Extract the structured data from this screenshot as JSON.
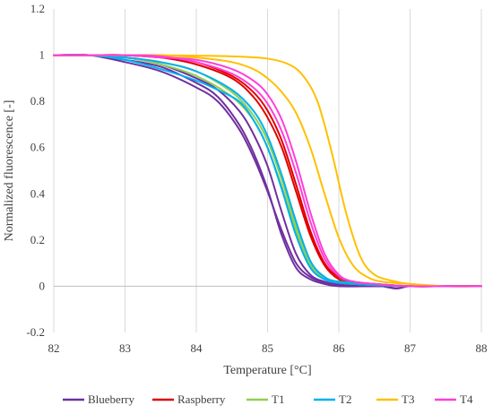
{
  "chart_data": {
    "type": "line",
    "title": "",
    "xlabel": "Temperature [°C]",
    "ylabel": "Normalized fluorescence [-]",
    "xlim": [
      82,
      88
    ],
    "ylim": [
      -0.2,
      1.2
    ],
    "xticks": [
      "82",
      "83",
      "84",
      "85",
      "86",
      "87",
      "88"
    ],
    "yticks": [
      "-0.2",
      "0",
      "0.2",
      "0.4",
      "0.6",
      "0.8",
      "1",
      "1.2"
    ],
    "grid": "vertical",
    "legend_position": "bottom",
    "series": [
      {
        "name": "Blueberry",
        "color": "#7030a0",
        "curves": [
          {
            "x": [
              82,
              82.5,
              83,
              83.5,
              84,
              84.3,
              84.6,
              84.8,
              85,
              85.2,
              85.4,
              85.6,
              85.8,
              86,
              86.5,
              87,
              87.5,
              88
            ],
            "y": [
              1.0,
              1.0,
              0.98,
              0.95,
              0.88,
              0.82,
              0.7,
              0.58,
              0.42,
              0.22,
              0.08,
              0.03,
              0.01,
              0.0,
              0.0,
              0.0,
              0.0,
              0.0
            ]
          },
          {
            "x": [
              82,
              82.5,
              83,
              83.5,
              84,
              84.3,
              84.6,
              84.8,
              85,
              85.2,
              85.4,
              85.6,
              85.8,
              86,
              86.5,
              86.8,
              87,
              87.5,
              88
            ],
            "y": [
              1.0,
              1.0,
              0.99,
              0.96,
              0.9,
              0.85,
              0.76,
              0.66,
              0.52,
              0.32,
              0.14,
              0.05,
              0.02,
              0.01,
              0.005,
              -0.01,
              0.0,
              0.0,
              0.0
            ]
          },
          {
            "x": [
              82,
              82.5,
              83,
              83.5,
              84,
              84.3,
              84.6,
              84.8,
              85,
              85.2,
              85.4,
              85.6,
              85.8,
              86,
              86.5,
              87,
              87.5,
              88
            ],
            "y": [
              1.0,
              1.0,
              0.97,
              0.93,
              0.86,
              0.8,
              0.68,
              0.56,
              0.41,
              0.24,
              0.1,
              0.04,
              0.015,
              0.005,
              0.0,
              0.0,
              0.0,
              0.0
            ]
          }
        ]
      },
      {
        "name": "Raspberry",
        "color": "#e00000",
        "curves": [
          {
            "x": [
              82,
              82.5,
              83,
              83.5,
              84,
              84.5,
              84.8,
              85,
              85.2,
              85.4,
              85.6,
              85.8,
              86,
              86.2,
              86.5,
              87,
              87.5,
              88
            ],
            "y": [
              1.0,
              1.0,
              1.0,
              0.99,
              0.97,
              0.91,
              0.84,
              0.76,
              0.63,
              0.44,
              0.24,
              0.1,
              0.04,
              0.02,
              0.01,
              0.0,
              0.0,
              0.0
            ]
          },
          {
            "x": [
              82,
              82.5,
              83,
              83.5,
              84,
              84.5,
              84.8,
              85,
              85.2,
              85.4,
              85.6,
              85.8,
              86,
              86.2,
              86.5,
              87,
              87.5,
              88
            ],
            "y": [
              1.0,
              1.0,
              1.0,
              0.99,
              0.96,
              0.9,
              0.82,
              0.73,
              0.6,
              0.41,
              0.22,
              0.09,
              0.03,
              0.015,
              0.01,
              0.0,
              0.0,
              0.0
            ]
          }
        ]
      },
      {
        "name": "T1",
        "color": "#92d050",
        "curves": [
          {
            "x": [
              82,
              82.5,
              83,
              83.5,
              84,
              84.5,
              84.8,
              85,
              85.2,
              85.4,
              85.6,
              85.8,
              86,
              86.5,
              87,
              87.5,
              88
            ],
            "y": [
              1.0,
              1.0,
              0.99,
              0.97,
              0.93,
              0.84,
              0.74,
              0.63,
              0.46,
              0.26,
              0.1,
              0.04,
              0.02,
              0.01,
              0.0,
              0.0,
              0.0
            ]
          },
          {
            "x": [
              82,
              82.5,
              83,
              83.5,
              84,
              84.5,
              84.8,
              85,
              85.2,
              85.4,
              85.6,
              85.8,
              86,
              86.5,
              87,
              87.5,
              88
            ],
            "y": [
              1.0,
              1.0,
              0.99,
              0.96,
              0.91,
              0.82,
              0.72,
              0.6,
              0.43,
              0.24,
              0.09,
              0.035,
              0.015,
              0.005,
              0.0,
              0.0,
              0.0
            ]
          }
        ]
      },
      {
        "name": "T2",
        "color": "#00b0f0",
        "curves": [
          {
            "x": [
              82,
              82.5,
              83,
              83.5,
              84,
              84.3,
              84.6,
              84.8,
              85,
              85.2,
              85.4,
              85.6,
              85.8,
              86,
              86.5,
              87,
              87.5,
              88
            ],
            "y": [
              1.0,
              1.0,
              0.98,
              0.94,
              0.89,
              0.85,
              0.8,
              0.72,
              0.6,
              0.42,
              0.22,
              0.08,
              0.03,
              0.015,
              0.005,
              0.0,
              0.0,
              0.0
            ]
          },
          {
            "x": [
              82,
              82.5,
              83,
              83.5,
              84,
              84.5,
              84.8,
              85,
              85.2,
              85.4,
              85.6,
              85.8,
              86,
              86.5,
              87,
              87.5,
              88
            ],
            "y": [
              1.0,
              1.0,
              0.99,
              0.97,
              0.93,
              0.85,
              0.76,
              0.65,
              0.48,
              0.28,
              0.11,
              0.04,
              0.02,
              0.01,
              0.0,
              0.0,
              0.0
            ]
          }
        ]
      },
      {
        "name": "T3",
        "color": "#ffc000",
        "curves": [
          {
            "x": [
              82,
              82.5,
              83,
              83.5,
              84,
              84.5,
              85,
              85.3,
              85.5,
              85.7,
              85.9,
              86.1,
              86.3,
              86.5,
              86.8,
              87,
              87.5,
              88
            ],
            "y": [
              1.0,
              1.0,
              1.0,
              1.0,
              0.998,
              0.995,
              0.985,
              0.96,
              0.91,
              0.8,
              0.58,
              0.32,
              0.13,
              0.05,
              0.02,
              0.01,
              0.0,
              0.0
            ]
          },
          {
            "x": [
              82,
              82.5,
              83,
              83.5,
              84,
              84.5,
              84.8,
              85,
              85.2,
              85.4,
              85.6,
              85.8,
              86,
              86.2,
              86.4,
              86.6,
              87,
              87.5,
              88
            ],
            "y": [
              1.0,
              1.0,
              1.0,
              1.0,
              0.99,
              0.97,
              0.94,
              0.9,
              0.84,
              0.75,
              0.6,
              0.4,
              0.21,
              0.09,
              0.04,
              0.02,
              0.01,
              0.0,
              0.0
            ]
          }
        ]
      },
      {
        "name": "T4",
        "color": "#ff3fd8",
        "curves": [
          {
            "x": [
              82,
              82.5,
              83,
              83.5,
              84,
              84.5,
              84.8,
              85,
              85.2,
              85.4,
              85.6,
              85.8,
              86,
              86.2,
              86.5,
              87,
              87.5,
              88
            ],
            "y": [
              1.0,
              1.0,
              1.0,
              0.99,
              0.98,
              0.94,
              0.89,
              0.83,
              0.72,
              0.54,
              0.32,
              0.14,
              0.05,
              0.02,
              0.01,
              0.0,
              0.0,
              0.0
            ]
          },
          {
            "x": [
              82,
              82.5,
              83,
              83.5,
              84,
              84.5,
              84.8,
              85,
              85.2,
              85.4,
              85.6,
              85.8,
              86,
              86.2,
              86.5,
              87,
              87.5,
              88
            ],
            "y": [
              1.0,
              1.0,
              1.0,
              0.995,
              0.97,
              0.92,
              0.86,
              0.79,
              0.67,
              0.49,
              0.28,
              0.12,
              0.045,
              0.02,
              0.01,
              0.0,
              0.0,
              0.0
            ]
          }
        ]
      }
    ]
  }
}
